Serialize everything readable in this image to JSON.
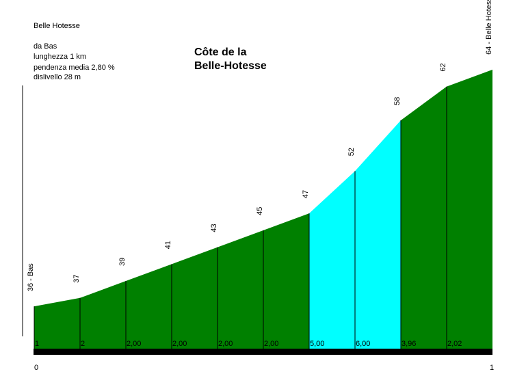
{
  "info": {
    "name": "Belle Hotesse",
    "from": "da Bas",
    "length": "lunghezza 1 km",
    "gradient": "pendenza media 2,80 %",
    "elevation_gain": "dislivello 28 m"
  },
  "chart_data": {
    "type": "area",
    "title_line1": "Côte de la",
    "title_line2": "Belle-Hotesse",
    "x": [
      0,
      0.1,
      0.2,
      0.3,
      0.4,
      0.5,
      0.6,
      0.7,
      0.8,
      0.9,
      1.0
    ],
    "elevation": [
      36,
      37,
      39,
      41,
      43,
      45,
      47,
      52,
      58,
      62,
      64
    ],
    "point_labels": [
      "36 - Bas",
      "37",
      "39",
      "41",
      "43",
      "45",
      "47",
      "52",
      "58",
      "62",
      "64 - Belle Hotesse"
    ],
    "segment_gradients": [
      "1",
      "2",
      "2,00",
      "2,00",
      "2,00",
      "2,00",
      "5,00",
      "6,00",
      "3,96",
      "2,02"
    ],
    "segment_colors": [
      "#008000",
      "#008000",
      "#008000",
      "#008000",
      "#008000",
      "#008000",
      "#00ffff",
      "#00ffff",
      "#008000",
      "#008000"
    ],
    "x_tick_labels": [
      "0",
      "1"
    ],
    "ylim": [
      31,
      69
    ]
  }
}
